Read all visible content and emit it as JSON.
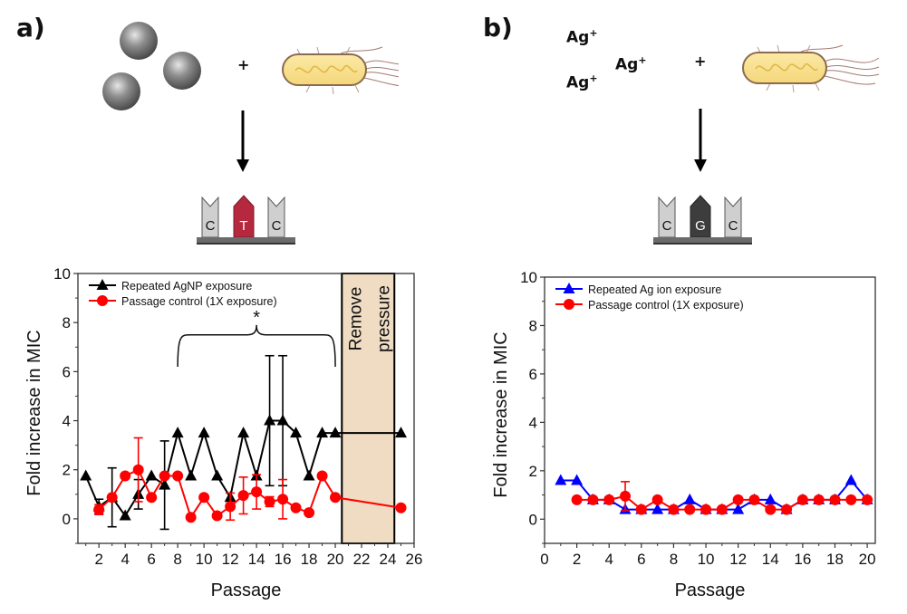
{
  "figure": {
    "panels": [
      {
        "label": "a)",
        "reactant_icon": "silver-nanoparticles-icon",
        "plus": "+",
        "organism_icon": "bacterium-icon",
        "mutation": {
          "bases": [
            "C",
            "T",
            "C"
          ],
          "mutated_index": 1,
          "mutated_color": "#b5283e"
        }
      },
      {
        "label": "b)",
        "reactant_ions": [
          "Ag",
          "Ag",
          "Ag"
        ],
        "ion_charge": "+",
        "plus": "+",
        "organism_icon": "bacterium-icon",
        "mutation": {
          "bases": [
            "C",
            "G",
            "C"
          ],
          "mutated_index": 1,
          "mutated_color": "#3d3d3d"
        }
      }
    ]
  },
  "chart_data": [
    {
      "type": "line",
      "title": "",
      "xlabel": "Passage",
      "ylabel": "Fold increase in MIC",
      "xlim": [
        0.4,
        26
      ],
      "ylim": [
        -1,
        10
      ],
      "xticks": [
        2,
        4,
        6,
        8,
        10,
        12,
        14,
        16,
        18,
        20,
        22,
        24,
        26
      ],
      "yticks": [
        0,
        2,
        4,
        6,
        8,
        10
      ],
      "grid": false,
      "legend_position": "top-left",
      "series": [
        {
          "name": "Repeated AgNP exposure",
          "color": "#000000",
          "marker": "triangle",
          "x": [
            1,
            2,
            3,
            4,
            5,
            6,
            7,
            8,
            9,
            10,
            11,
            12,
            13,
            14,
            15,
            16,
            17,
            18,
            19,
            20,
            25
          ],
          "y": [
            1.75,
            0.5,
            0.875,
            0.125,
            1.0,
            1.75,
            1.375,
            3.5,
            1.75,
            3.5,
            1.75,
            0.875,
            3.5,
            1.75,
            4.0,
            4.0,
            3.5,
            1.75,
            3.5,
            3.5,
            3.5
          ],
          "err": [
            0,
            0.3,
            1.2,
            0,
            0.6,
            0,
            1.8,
            0,
            0,
            0,
            0,
            0,
            0,
            0,
            2.65,
            2.65,
            0,
            0,
            0,
            0,
            0
          ],
          "connect_gap_label": "20-25 joined by straight line"
        },
        {
          "name": "Passage control (1X exposure)",
          "color": "#ff0000",
          "marker": "circle",
          "x": [
            2,
            3,
            4,
            5,
            6,
            7,
            8,
            9,
            10,
            11,
            12,
            13,
            14,
            15,
            16,
            17,
            18,
            19,
            20,
            25
          ],
          "y": [
            0.375,
            0.875,
            1.75,
            2.0,
            0.875,
            1.75,
            1.75,
            0.0625,
            0.875,
            0.125,
            0.5,
            0.95,
            1.1,
            0.7,
            0.8,
            0.45,
            0.25,
            1.75,
            0.875,
            0.45
          ],
          "err": [
            0.2,
            0,
            0,
            1.3,
            0,
            0,
            0,
            0,
            0,
            0,
            0.55,
            0.75,
            0.7,
            0.2,
            0.8,
            0,
            0,
            0,
            0,
            0
          ]
        }
      ],
      "annotations": {
        "significance_marker": "*",
        "brace_range": [
          8,
          20
        ],
        "shaded_region": {
          "x_range": [
            20.5,
            24.5
          ],
          "label_lines": [
            "Remove",
            "pressure"
          ],
          "color": "#efdcc2"
        }
      }
    },
    {
      "type": "line",
      "title": "",
      "xlabel": "Passage",
      "ylabel": "Fold increase in MIC",
      "xlim": [
        0,
        20.5
      ],
      "ylim": [
        -1,
        10
      ],
      "xticks": [
        0,
        2,
        4,
        6,
        8,
        10,
        12,
        14,
        16,
        18,
        20
      ],
      "yticks": [
        0,
        2,
        4,
        6,
        8,
        10
      ],
      "grid": false,
      "legend_position": "top-left",
      "series": [
        {
          "name": "Repeated Ag ion exposure",
          "color": "#0000ff",
          "marker": "triangle",
          "x": [
            1,
            2,
            3,
            4,
            5,
            6,
            7,
            8,
            9,
            10,
            11,
            12,
            13,
            14,
            15,
            16,
            17,
            18,
            19,
            20
          ],
          "y": [
            1.6,
            1.6,
            0.8,
            0.8,
            0.4,
            0.4,
            0.4,
            0.4,
            0.8,
            0.4,
            0.4,
            0.4,
            0.8,
            0.8,
            0.4,
            0.8,
            0.8,
            0.8,
            1.6,
            0.8
          ],
          "err": [
            0,
            0,
            0,
            0,
            0,
            0,
            0,
            0,
            0,
            0,
            0,
            0,
            0,
            0,
            0,
            0,
            0,
            0,
            0,
            0
          ]
        },
        {
          "name": "Passage control (1X exposure)",
          "color": "#ff0000",
          "marker": "circle",
          "x": [
            2,
            3,
            4,
            5,
            6,
            7,
            8,
            9,
            10,
            11,
            12,
            13,
            14,
            15,
            16,
            17,
            18,
            19,
            20
          ],
          "y": [
            0.8,
            0.8,
            0.8,
            0.95,
            0.4,
            0.8,
            0.4,
            0.4,
            0.4,
            0.4,
            0.8,
            0.8,
            0.4,
            0.4,
            0.8,
            0.8,
            0.8,
            0.8,
            0.8
          ],
          "err": [
            0,
            0,
            0,
            0.6,
            0,
            0,
            0,
            0,
            0,
            0,
            0,
            0,
            0,
            0,
            0,
            0,
            0,
            0,
            0
          ]
        }
      ]
    }
  ]
}
